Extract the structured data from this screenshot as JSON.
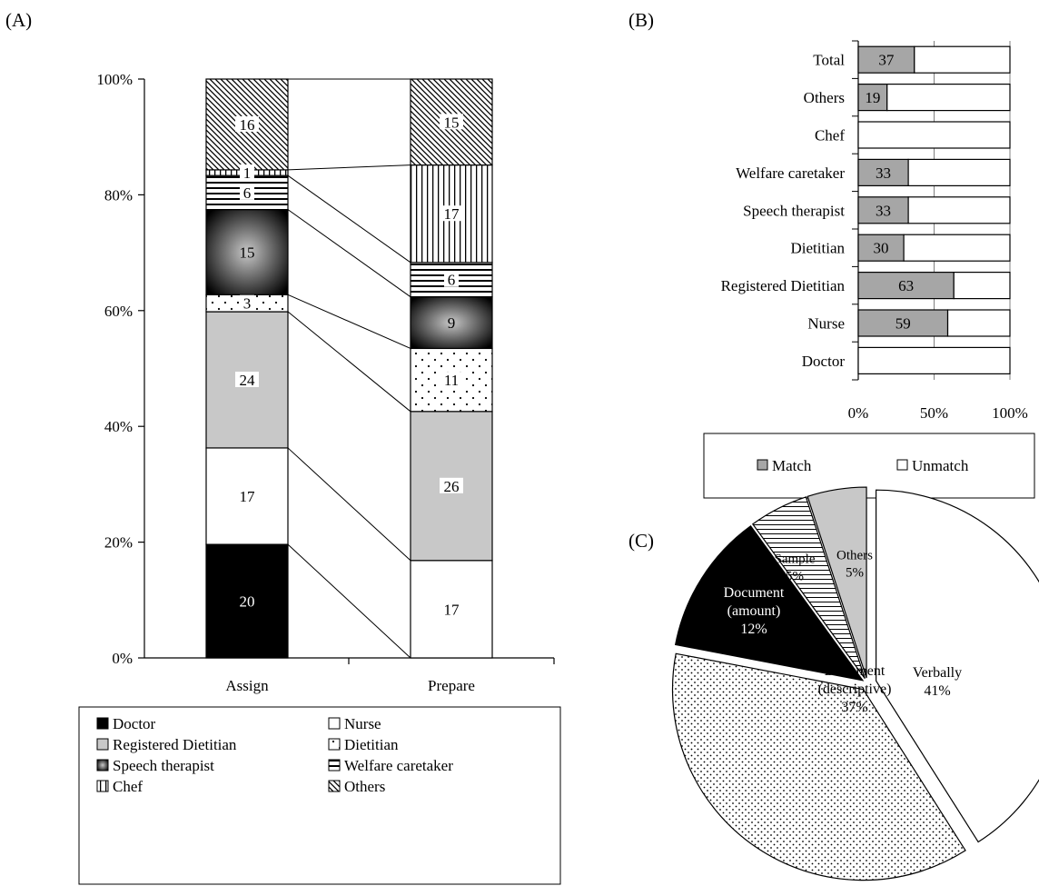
{
  "panels": {
    "a": "(A)",
    "b": "(B)",
    "c": "(C)"
  },
  "chart_data": [
    {
      "id": "A",
      "type": "bar",
      "stacked": true,
      "categories": [
        "Assign",
        "Prepare"
      ],
      "yticks": [
        "0%",
        "20%",
        "40%",
        "60%",
        "80%",
        "100%"
      ],
      "ylim": [
        0,
        100
      ],
      "series": [
        {
          "name": "Doctor",
          "values": [
            20,
            0
          ],
          "labels": [
            "20",
            ""
          ]
        },
        {
          "name": "Nurse",
          "values": [
            17,
            17
          ],
          "labels": [
            "17",
            "17"
          ]
        },
        {
          "name": "Registered Dietitian",
          "values": [
            24,
            26
          ],
          "labels": [
            "24",
            "26"
          ]
        },
        {
          "name": "Dietitian",
          "values": [
            3,
            11
          ],
          "labels": [
            "3",
            "11"
          ]
        },
        {
          "name": "Speech therapist",
          "values": [
            15,
            9
          ],
          "labels": [
            "15",
            "9"
          ]
        },
        {
          "name": "Welfare caretaker",
          "values": [
            6,
            6
          ],
          "labels": [
            "6",
            "6"
          ]
        },
        {
          "name": "Chef",
          "values": [
            1,
            17
          ],
          "labels": [
            "1",
            "17"
          ]
        },
        {
          "name": "Others",
          "values": [
            16,
            15
          ],
          "labels": [
            "16",
            "15"
          ]
        }
      ],
      "legend": [
        "Doctor",
        "Nurse",
        "Registered Dietitian",
        "Dietitian",
        "Speech therapist",
        "Welfare caretaker",
        "Chef",
        "Others"
      ],
      "legend_position": "bottom"
    },
    {
      "id": "B",
      "type": "bar",
      "orientation": "horizontal",
      "stacked": true,
      "categories": [
        "Total",
        "Others",
        "Chef",
        "Welfare caretaker",
        "Speech therapist",
        "Dietitian",
        "Registered Dietitian",
        "Nurse",
        "Doctor"
      ],
      "series": [
        {
          "name": "Match",
          "values": [
            37,
            19,
            0,
            33,
            33,
            30,
            63,
            59,
            0
          ]
        },
        {
          "name": "Unmatch",
          "values": [
            63,
            81,
            100,
            67,
            67,
            70,
            37,
            41,
            100
          ]
        }
      ],
      "value_labels": [
        "37",
        "19",
        "",
        "33",
        "33",
        "30",
        "63",
        "59",
        ""
      ],
      "xticks": [
        "0%",
        "50%",
        "100%"
      ],
      "xlim": [
        0,
        100
      ],
      "legend": [
        "Match",
        "Unmatch"
      ],
      "legend_position": "bottom"
    },
    {
      "id": "C",
      "type": "pie",
      "exploded": true,
      "slices": [
        {
          "label": "Verbally",
          "value": 41,
          "value_text": "41%"
        },
        {
          "label": "Document (descriptive)",
          "value": 37,
          "value_text": "37%"
        },
        {
          "label": "Document (amount)",
          "value": 12,
          "value_text": "12%"
        },
        {
          "label": "Sample",
          "value": 5,
          "value_text": "5%"
        },
        {
          "label": "Others",
          "value": 5,
          "value_text": "5%"
        }
      ]
    }
  ]
}
